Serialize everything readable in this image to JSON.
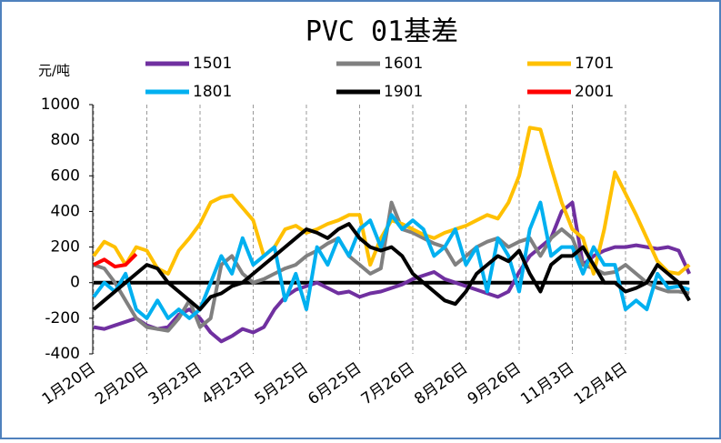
{
  "chart_data": {
    "type": "line",
    "title": "PVC 01基差",
    "y_label": "元/吨",
    "categories": [
      "1月20日",
      null,
      null,
      null,
      null,
      "2月20日",
      null,
      null,
      null,
      null,
      "3月23日",
      null,
      null,
      null,
      null,
      "4月23日",
      null,
      null,
      null,
      null,
      "5月25日",
      null,
      null,
      null,
      null,
      "6月25日",
      null,
      null,
      null,
      null,
      "7月26日",
      null,
      null,
      null,
      null,
      "8月26日",
      null,
      null,
      null,
      null,
      "9月26日",
      null,
      null,
      null,
      null,
      "11月3日",
      null,
      null,
      null,
      null,
      "12月4日",
      null,
      null,
      null,
      null,
      null,
      null
    ],
    "series": [
      {
        "name": "1501",
        "color": "#7030a0",
        "values": [
          -250,
          -260,
          -240,
          -220,
          -200,
          -240,
          -260,
          -250,
          -180,
          -150,
          -200,
          -280,
          -330,
          -300,
          -260,
          -280,
          -250,
          -150,
          -80,
          -40,
          -20,
          0,
          -30,
          -60,
          -50,
          -80,
          -60,
          -50,
          -30,
          -10,
          20,
          40,
          60,
          20,
          0,
          -20,
          -40,
          -60,
          -80,
          -50,
          60,
          150,
          200,
          250,
          400,
          450,
          100,
          150,
          180,
          200,
          200,
          210,
          200,
          190,
          200,
          180,
          50
        ]
      },
      {
        "name": "1601",
        "color": "#808080",
        "values": [
          100,
          80,
          0,
          -100,
          -200,
          -250,
          -260,
          -270,
          -200,
          -100,
          -250,
          -200,
          100,
          150,
          50,
          0,
          20,
          50,
          80,
          100,
          150,
          180,
          220,
          250,
          150,
          100,
          50,
          80,
          450,
          300,
          280,
          250,
          220,
          200,
          100,
          150,
          200,
          230,
          250,
          200,
          230,
          250,
          150,
          250,
          300,
          250,
          100,
          80,
          50,
          60,
          100,
          50,
          0,
          -30,
          -50,
          -50,
          -60
        ]
      },
      {
        "name": "1701",
        "color": "#ffc000",
        "values": [
          150,
          230,
          200,
          100,
          200,
          180,
          80,
          50,
          180,
          250,
          330,
          450,
          480,
          490,
          420,
          350,
          150,
          200,
          300,
          320,
          280,
          300,
          330,
          350,
          380,
          380,
          100,
          250,
          350,
          330,
          300,
          270,
          250,
          280,
          300,
          320,
          350,
          380,
          360,
          450,
          600,
          870,
          860,
          650,
          450,
          300,
          250,
          50,
          300,
          620,
          500,
          380,
          250,
          120,
          60,
          50,
          100
        ]
      },
      {
        "name": "1801",
        "color": "#00b0f0",
        "values": [
          -80,
          0,
          -50,
          50,
          -150,
          -200,
          -100,
          -200,
          -150,
          -200,
          -150,
          0,
          150,
          50,
          250,
          100,
          150,
          200,
          -100,
          50,
          -150,
          200,
          100,
          250,
          150,
          300,
          350,
          200,
          380,
          300,
          350,
          300,
          150,
          200,
          300,
          100,
          200,
          -50,
          250,
          150,
          -50,
          300,
          450,
          150,
          200,
          200,
          50,
          200,
          100,
          100,
          -150,
          -100,
          -150,
          50,
          -30,
          -20,
          -40
        ]
      },
      {
        "name": "1901",
        "color": "#000000",
        "values": [
          -150,
          -100,
          -50,
          0,
          50,
          100,
          80,
          0,
          -50,
          -100,
          -150,
          -80,
          -60,
          -20,
          0,
          50,
          100,
          150,
          200,
          250,
          300,
          280,
          250,
          300,
          330,
          250,
          200,
          180,
          200,
          150,
          50,
          0,
          -50,
          -100,
          -120,
          -50,
          50,
          100,
          150,
          120,
          180,
          50,
          -50,
          100,
          150,
          150,
          200,
          100,
          0,
          0,
          -50,
          -30,
          0,
          100,
          50,
          0,
          -100
        ]
      },
      {
        "name": "2001",
        "color": "#ff0000",
        "values": [
          100,
          130,
          90,
          100,
          160,
          null,
          null,
          null,
          null,
          null,
          null,
          null,
          null,
          null,
          null,
          null,
          null,
          null,
          null,
          null,
          null,
          null,
          null,
          null,
          null,
          null,
          null,
          null,
          null,
          null,
          null,
          null,
          null,
          null,
          null,
          null,
          null,
          null,
          null,
          null,
          null,
          null,
          null,
          null,
          null,
          null,
          null,
          null,
          null,
          null,
          null,
          null,
          null,
          null,
          null,
          null,
          null
        ]
      }
    ],
    "ylim": [
      -400,
      1000
    ],
    "yticks": [
      -400,
      -200,
      0,
      200,
      400,
      600,
      800,
      1000
    ],
    "grid": true
  }
}
